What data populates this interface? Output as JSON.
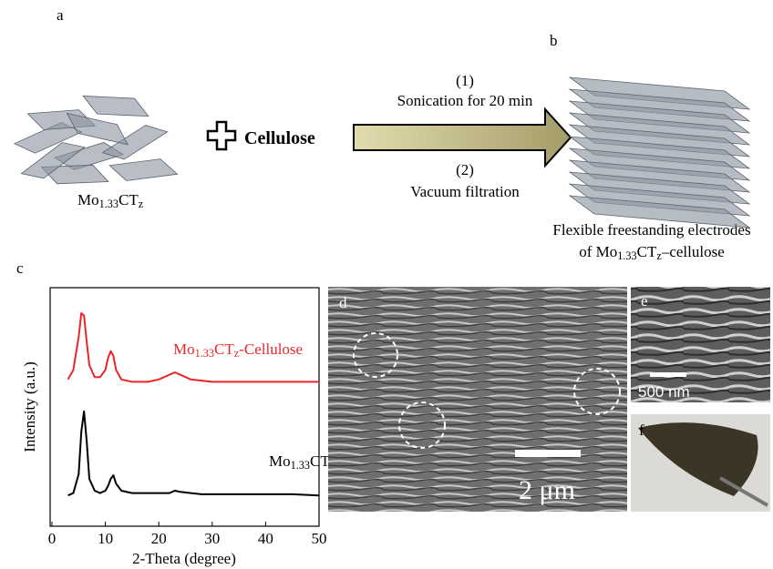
{
  "panels": {
    "a": "a",
    "b": "b",
    "c": "c",
    "d": "d",
    "e": "e",
    "f": "f"
  },
  "scheme": {
    "material": [
      "Mo",
      "1.33",
      "CT",
      "z"
    ],
    "reagent": "Cellulose",
    "step1_num": "(1)",
    "step1": "Sonication for 20 min",
    "step2_num": "(2)",
    "step2": "Vacuum filtration",
    "product_line1": "Flexible freestanding electrodes",
    "product_line2": [
      "of Mo",
      "1.33",
      "CT",
      "z",
      "–cellulose"
    ]
  },
  "chart_data": {
    "type": "line",
    "xlabel": "2-Theta (degree)",
    "ylabel": "Intensity (a.u.)",
    "x": [
      3,
      4,
      5,
      5.5,
      6,
      6.5,
      7,
      8,
      9,
      10,
      10.5,
      11,
      11.5,
      12,
      13,
      15,
      18,
      20,
      22,
      23,
      24,
      26,
      28,
      30,
      35,
      40,
      45,
      50
    ],
    "series": [
      {
        "name": [
          "Mo",
          "1.33",
          "CT",
          "z",
          "-Cellulose"
        ],
        "color": "#e8262a",
        "values": [
          62,
          66,
          80,
          90,
          89,
          78,
          68,
          63,
          63,
          66,
          71,
          74,
          72,
          66,
          62,
          61,
          61,
          62,
          64,
          65,
          64,
          62,
          61.5,
          61,
          61,
          61,
          61,
          61
        ]
      },
      {
        "name": [
          "Mo",
          "1.33",
          "CT",
          "z"
        ],
        "color": "#000000",
        "values": [
          13,
          14,
          22,
          40,
          48.5,
          36,
          20,
          15,
          14,
          15,
          17,
          20,
          21.5,
          18,
          15,
          14,
          14,
          14,
          14,
          15,
          14.5,
          14,
          13.5,
          13.5,
          13.5,
          13.5,
          13.5,
          13
        ]
      }
    ],
    "xlim": [
      0,
      50
    ],
    "xticks": [
      0,
      10,
      20,
      30,
      40,
      50
    ],
    "ylim": [
      0,
      100
    ]
  },
  "images": {
    "scale_d": "2 μm",
    "scale_e": "500 nm"
  }
}
